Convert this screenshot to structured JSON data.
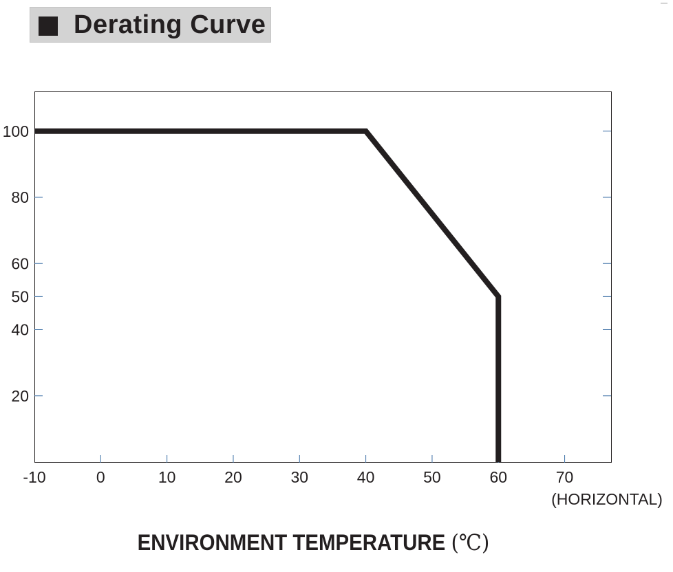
{
  "header": {
    "title": "Derating Curve"
  },
  "chart_data": {
    "type": "line",
    "title": "Derating Curve",
    "xlabel": "ENVIRONMENT TEMPERATURE",
    "xlabel_unit": "(℃)",
    "ylabel": "",
    "x_note": "(HORIZONTAL)",
    "xlim": [
      -10,
      77
    ],
    "ylim": [
      0,
      112
    ],
    "x_ticks": [
      -10,
      0,
      10,
      20,
      30,
      40,
      50,
      60,
      70
    ],
    "y_ticks": [
      20,
      40,
      50,
      60,
      80,
      100
    ],
    "grid": false,
    "series": [
      {
        "x": [
          -10,
          40,
          60,
          60
        ],
        "y": [
          100,
          100,
          50,
          0
        ]
      }
    ]
  },
  "colors": {
    "curve": "#231f20",
    "axis_frame": "#231f20",
    "tick_marks": "#3a6ea5",
    "title_background": "#d3d3d3"
  }
}
